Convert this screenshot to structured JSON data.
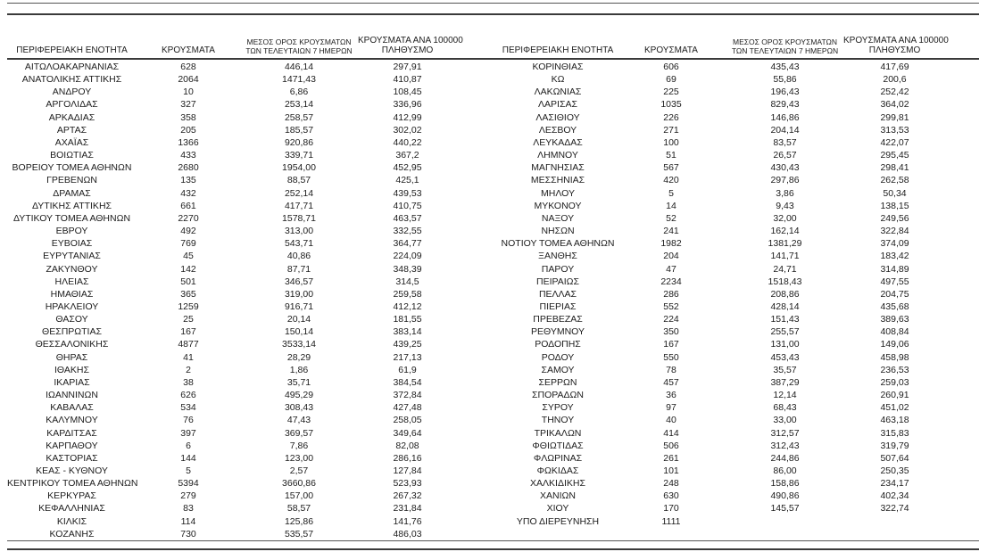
{
  "columns": {
    "region": "ΠΕΡΙΦΕΡΕΙΑΚΗ ΕΝΟΤΗΤΑ",
    "cases": "ΚΡΟΥΣΜΑΤΑ",
    "avg7_line1": "ΜΕΣΟΣ ΟΡΟΣ ΚΡΟΥΣΜΑΤΩΝ",
    "avg7_line2": "ΤΩΝ ΤΕΛΕΥΤΑΙΩΝ 7 ΗΜΕΡΩΝ",
    "per100k_line1": "ΚΡΟΥΣΜΑΤΑ ΑΝΑ 100000",
    "per100k_line2": "ΠΛΗΘΥΣΜΟ"
  },
  "tables": {
    "left": {
      "rows": [
        [
          "ΑΙΤΩΛΟΑΚΑΡΝΑΝΙΑΣ",
          "628",
          "446,14",
          "297,91"
        ],
        [
          "ΑΝΑΤΟΛΙΚΗΣ ΑΤΤΙΚΗΣ",
          "2064",
          "1471,43",
          "410,87"
        ],
        [
          "ΑΝΔΡΟΥ",
          "10",
          "6,86",
          "108,45"
        ],
        [
          "ΑΡΓΟΛΙΔΑΣ",
          "327",
          "253,14",
          "336,96"
        ],
        [
          "ΑΡΚΑΔΙΑΣ",
          "358",
          "258,57",
          "412,99"
        ],
        [
          "ΑΡΤΑΣ",
          "205",
          "185,57",
          "302,02"
        ],
        [
          "ΑΧΑΪΑΣ",
          "1366",
          "920,86",
          "440,22"
        ],
        [
          "ΒΟΙΩΤΙΑΣ",
          "433",
          "339,71",
          "367,2"
        ],
        [
          "ΒΟΡΕΙΟΥ ΤΟΜΕΑ ΑΘΗΝΩΝ",
          "2680",
          "1954,00",
          "452,95"
        ],
        [
          "ΓΡΕΒΕΝΩΝ",
          "135",
          "88,57",
          "425,1"
        ],
        [
          "ΔΡΑΜΑΣ",
          "432",
          "252,14",
          "439,53"
        ],
        [
          "ΔΥΤΙΚΗΣ ΑΤΤΙΚΗΣ",
          "661",
          "417,71",
          "410,75"
        ],
        [
          "ΔΥΤΙΚΟΥ ΤΟΜΕΑ ΑΘΗΝΩΝ",
          "2270",
          "1578,71",
          "463,57"
        ],
        [
          "ΕΒΡΟΥ",
          "492",
          "313,00",
          "332,55"
        ],
        [
          "ΕΥΒΟΙΑΣ",
          "769",
          "543,71",
          "364,77"
        ],
        [
          "ΕΥΡΥΤΑΝΙΑΣ",
          "45",
          "40,86",
          "224,09"
        ],
        [
          "ΖΑΚΥΝΘΟΥ",
          "142",
          "87,71",
          "348,39"
        ],
        [
          "ΗΛΕΙΑΣ",
          "501",
          "346,57",
          "314,5"
        ],
        [
          "ΗΜΑΘΙΑΣ",
          "365",
          "319,00",
          "259,58"
        ],
        [
          "ΗΡΑΚΛΕΙΟΥ",
          "1259",
          "916,71",
          "412,12"
        ],
        [
          "ΘΑΣΟΥ",
          "25",
          "20,14",
          "181,55"
        ],
        [
          "ΘΕΣΠΡΩΤΙΑΣ",
          "167",
          "150,14",
          "383,14"
        ],
        [
          "ΘΕΣΣΑΛΟΝΙΚΗΣ",
          "4877",
          "3533,14",
          "439,25"
        ],
        [
          "ΘΗΡΑΣ",
          "41",
          "28,29",
          "217,13"
        ],
        [
          "ΙΘΑΚΗΣ",
          "2",
          "1,86",
          "61,9"
        ],
        [
          "ΙΚΑΡΙΑΣ",
          "38",
          "35,71",
          "384,54"
        ],
        [
          "ΙΩΑΝΝΙΝΩΝ",
          "626",
          "495,29",
          "372,84"
        ],
        [
          "ΚΑΒΑΛΑΣ",
          "534",
          "308,43",
          "427,48"
        ],
        [
          "ΚΑΛΥΜΝΟΥ",
          "76",
          "47,43",
          "258,05"
        ],
        [
          "ΚΑΡΔΙΤΣΑΣ",
          "397",
          "369,57",
          "349,64"
        ],
        [
          "ΚΑΡΠΑΘΟΥ",
          "6",
          "7,86",
          "82,08"
        ],
        [
          "ΚΑΣΤΟΡΙΑΣ",
          "144",
          "123,00",
          "286,16"
        ],
        [
          "ΚΕΑΣ - ΚΥΘΝΟΥ",
          "5",
          "2,57",
          "127,84"
        ],
        [
          "ΚΕΝΤΡΙΚΟΥ ΤΟΜΕΑ ΑΘΗΝΩΝ",
          "5394",
          "3660,86",
          "523,93"
        ],
        [
          "ΚΕΡΚΥΡΑΣ",
          "279",
          "157,00",
          "267,32"
        ],
        [
          "ΚΕΦΑΛΛΗΝΙΑΣ",
          "83",
          "58,57",
          "231,84"
        ],
        [
          "ΚΙΛΚΙΣ",
          "114",
          "125,86",
          "141,76"
        ],
        [
          "ΚΟΖΑΝΗΣ",
          "730",
          "535,57",
          "486,03"
        ]
      ]
    },
    "right": {
      "rows": [
        [
          "ΚΟΡΙΝΘΙΑΣ",
          "606",
          "435,43",
          "417,69"
        ],
        [
          "ΚΩ",
          "69",
          "55,86",
          "200,6"
        ],
        [
          "ΛΑΚΩΝΙΑΣ",
          "225",
          "196,43",
          "252,42"
        ],
        [
          "ΛΑΡΙΣΑΣ",
          "1035",
          "829,43",
          "364,02"
        ],
        [
          "ΛΑΣΙΘΙΟΥ",
          "226",
          "146,86",
          "299,81"
        ],
        [
          "ΛΕΣΒΟΥ",
          "271",
          "204,14",
          "313,53"
        ],
        [
          "ΛΕΥΚΑΔΑΣ",
          "100",
          "83,57",
          "422,07"
        ],
        [
          "ΛΗΜΝΟΥ",
          "51",
          "26,57",
          "295,45"
        ],
        [
          "ΜΑΓΝΗΣΙΑΣ",
          "567",
          "430,43",
          "298,41"
        ],
        [
          "ΜΕΣΣΗΝΙΑΣ",
          "420",
          "297,86",
          "262,58"
        ],
        [
          "ΜΗΛΟΥ",
          "5",
          "3,86",
          "50,34"
        ],
        [
          "ΜΥΚΟΝΟΥ",
          "14",
          "9,43",
          "138,15"
        ],
        [
          "ΝΑΞΟΥ",
          "52",
          "32,00",
          "249,56"
        ],
        [
          "ΝΗΣΩΝ",
          "241",
          "162,14",
          "322,84"
        ],
        [
          "ΝΟΤΙΟΥ ΤΟΜΕΑ ΑΘΗΝΩΝ",
          "1982",
          "1381,29",
          "374,09"
        ],
        [
          "ΞΑΝΘΗΣ",
          "204",
          "141,71",
          "183,42"
        ],
        [
          "ΠΑΡΟΥ",
          "47",
          "24,71",
          "314,89"
        ],
        [
          "ΠΕΙΡΑΙΩΣ",
          "2234",
          "1518,43",
          "497,55"
        ],
        [
          "ΠΕΛΛΑΣ",
          "286",
          "208,86",
          "204,75"
        ],
        [
          "ΠΙΕΡΙΑΣ",
          "552",
          "428,14",
          "435,68"
        ],
        [
          "ΠΡΕΒΕΖΑΣ",
          "224",
          "151,43",
          "389,63"
        ],
        [
          "ΡΕΘΥΜΝΟΥ",
          "350",
          "255,57",
          "408,84"
        ],
        [
          "ΡΟΔΟΠΗΣ",
          "167",
          "131,00",
          "149,06"
        ],
        [
          "ΡΟΔΟΥ",
          "550",
          "453,43",
          "458,98"
        ],
        [
          "ΣΑΜΟΥ",
          "78",
          "35,57",
          "236,53"
        ],
        [
          "ΣΕΡΡΩΝ",
          "457",
          "387,29",
          "259,03"
        ],
        [
          "ΣΠΟΡΑΔΩΝ",
          "36",
          "12,14",
          "260,91"
        ],
        [
          "ΣΥΡΟΥ",
          "97",
          "68,43",
          "451,02"
        ],
        [
          "ΤΗΝΟΥ",
          "40",
          "33,00",
          "463,18"
        ],
        [
          "ΤΡΙΚΑΛΩΝ",
          "414",
          "312,57",
          "315,83"
        ],
        [
          "ΦΘΙΩΤΙΔΑΣ",
          "506",
          "312,43",
          "319,79"
        ],
        [
          "ΦΛΩΡΙΝΑΣ",
          "261",
          "244,86",
          "507,64"
        ],
        [
          "ΦΩΚΙΔΑΣ",
          "101",
          "86,00",
          "250,35"
        ],
        [
          "ΧΑΛΚΙΔΙΚΗΣ",
          "248",
          "158,86",
          "234,17"
        ],
        [
          "ΧΑΝΙΩΝ",
          "630",
          "490,86",
          "402,34"
        ],
        [
          "ΧΙΟΥ",
          "170",
          "145,57",
          "322,74"
        ],
        [
          "ΥΠΟ ΔΙΕΡΕΥΝΗΣΗ",
          "1111",
          "",
          ""
        ]
      ]
    }
  },
  "colors": {
    "text": "#1c1c1c",
    "rule_thin": "#555555",
    "rule_thick": "#3a3a3a",
    "background": "#ffffff"
  }
}
